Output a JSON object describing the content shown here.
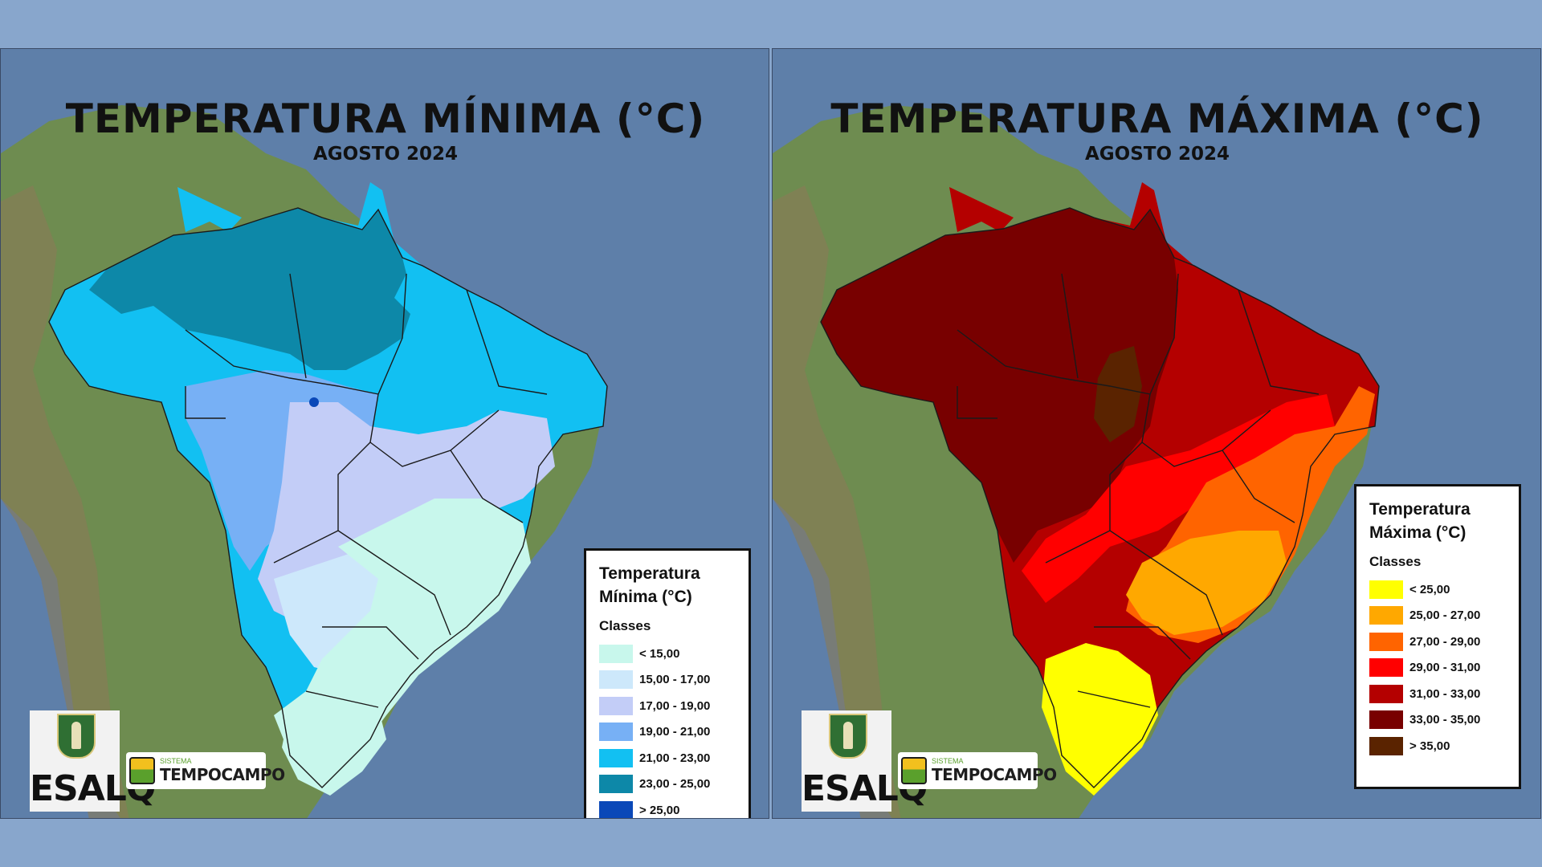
{
  "panels": [
    {
      "title": "TEMPERATURA MÍNIMA (°C)",
      "subtitle": "AGOSTO 2024",
      "legend": {
        "title_line1": "Temperatura",
        "title_line2": "Mínima (°C)",
        "classes_label": "Classes",
        "items": [
          {
            "label": "< 15,00",
            "color": "#c8f7ec"
          },
          {
            "label": "15,00 - 17,00",
            "color": "#cde8fb"
          },
          {
            "label": "17,00 - 19,00",
            "color": "#c3cdf7"
          },
          {
            "label": "19,00 - 21,00",
            "color": "#77b0f5"
          },
          {
            "label": "21,00 - 23,00",
            "color": "#12c0f2"
          },
          {
            "label": "23,00 - 25,00",
            "color": "#0d88a8"
          },
          {
            "label": "> 25,00",
            "color": "#0a48b8"
          }
        ]
      }
    },
    {
      "title": "TEMPERATURA MÁXIMA (°C)",
      "subtitle": "AGOSTO 2024",
      "legend": {
        "title_line1": "Temperatura",
        "title_line2": "Máxima (°C)",
        "classes_label": "Classes",
        "items": [
          {
            "label": "< 25,00",
            "color": "#ffff00"
          },
          {
            "label": "25,00 - 27,00",
            "color": "#ffa800"
          },
          {
            "label": "27,00 - 29,00",
            "color": "#ff6400"
          },
          {
            "label": "29,00 - 31,00",
            "color": "#ff0000"
          },
          {
            "label": "31,00 - 33,00",
            "color": "#b40000"
          },
          {
            "label": "33,00 - 35,00",
            "color": "#780000"
          },
          {
            "label": "> 35,00",
            "color": "#5a2300"
          }
        ]
      }
    }
  ],
  "logos": {
    "esalq": "ESALQ",
    "tempo_small": "SISTEMA",
    "tempo_big": "TEMPOCAMPO"
  },
  "colors": {
    "ocean": "#5b7aa3",
    "land": "#6f8f4e",
    "background": "#88a6cc"
  }
}
